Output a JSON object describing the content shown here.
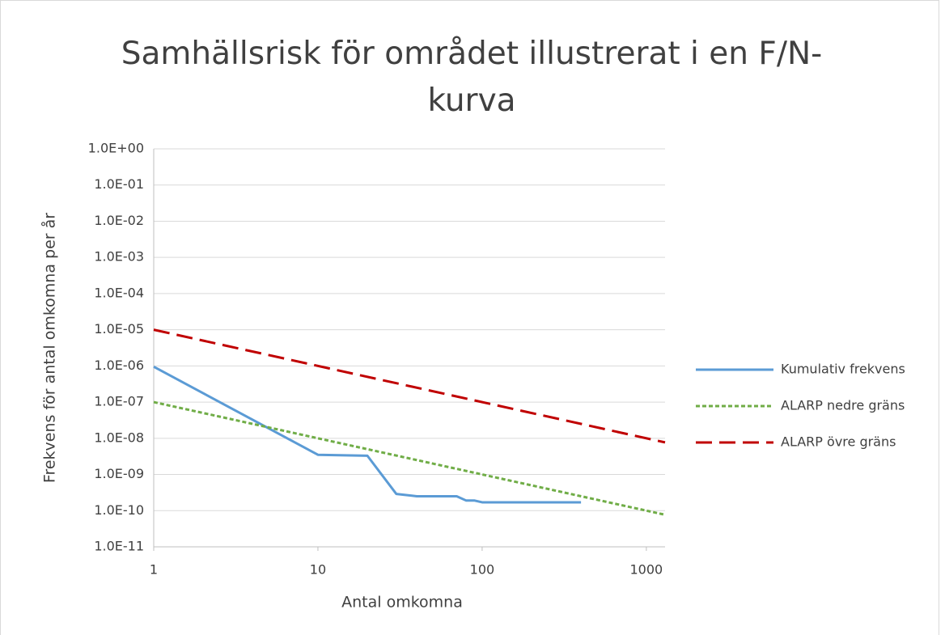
{
  "chart_data": {
    "type": "line",
    "title": "Samhällsrisk för området illustrerat i en F/N-kurva",
    "x_label": "Antal omkomna",
    "y_label": "Frekvens för antal omkomna per år",
    "x_scale": "log",
    "y_scale": "log",
    "xlim": [
      1,
      1300
    ],
    "xticks": [
      1,
      10,
      100,
      1000
    ],
    "ylim": [
      1e-11,
      1
    ],
    "yticks": [
      {
        "value": 1e-11,
        "label": "1.0E-11"
      },
      {
        "value": 1e-10,
        "label": "1.0E-10"
      },
      {
        "value": 1e-09,
        "label": "1.0E-09"
      },
      {
        "value": 1e-08,
        "label": "1.0E-08"
      },
      {
        "value": 1e-07,
        "label": "1.0E-07"
      },
      {
        "value": 1e-06,
        "label": "1.0E-06"
      },
      {
        "value": 1e-05,
        "label": "1.0E-05"
      },
      {
        "value": 0.0001,
        "label": "1.0E-04"
      },
      {
        "value": 0.001,
        "label": "1.0E-03"
      },
      {
        "value": 0.01,
        "label": "1.0E-02"
      },
      {
        "value": 0.1,
        "label": "1.0E-01"
      },
      {
        "value": 1,
        "label": "1.0E+00"
      }
    ],
    "grid": true,
    "legend": "right",
    "series": [
      {
        "name": "Kumulativ frekvens",
        "color": "#5b9bd5",
        "dash": "none",
        "x": [
          1,
          10,
          20,
          30,
          40,
          70,
          80,
          90,
          100,
          400
        ],
        "values": [
          9.5e-07,
          3.5e-09,
          3.3e-09,
          2.9e-10,
          2.5e-10,
          2.5e-10,
          1.9e-10,
          1.9e-10,
          1.7e-10,
          1.7e-10
        ]
      },
      {
        "name": "ALARP nedre gräns",
        "color": "#70ad47",
        "dash": "5,3",
        "x": [
          1,
          1300
        ],
        "values": [
          1e-07,
          7.7e-11
        ]
      },
      {
        "name": "ALARP övre gräns",
        "color": "#c00000",
        "dash": "20,9",
        "x": [
          1,
          1300
        ],
        "values": [
          1e-05,
          7.7e-09
        ]
      }
    ]
  }
}
